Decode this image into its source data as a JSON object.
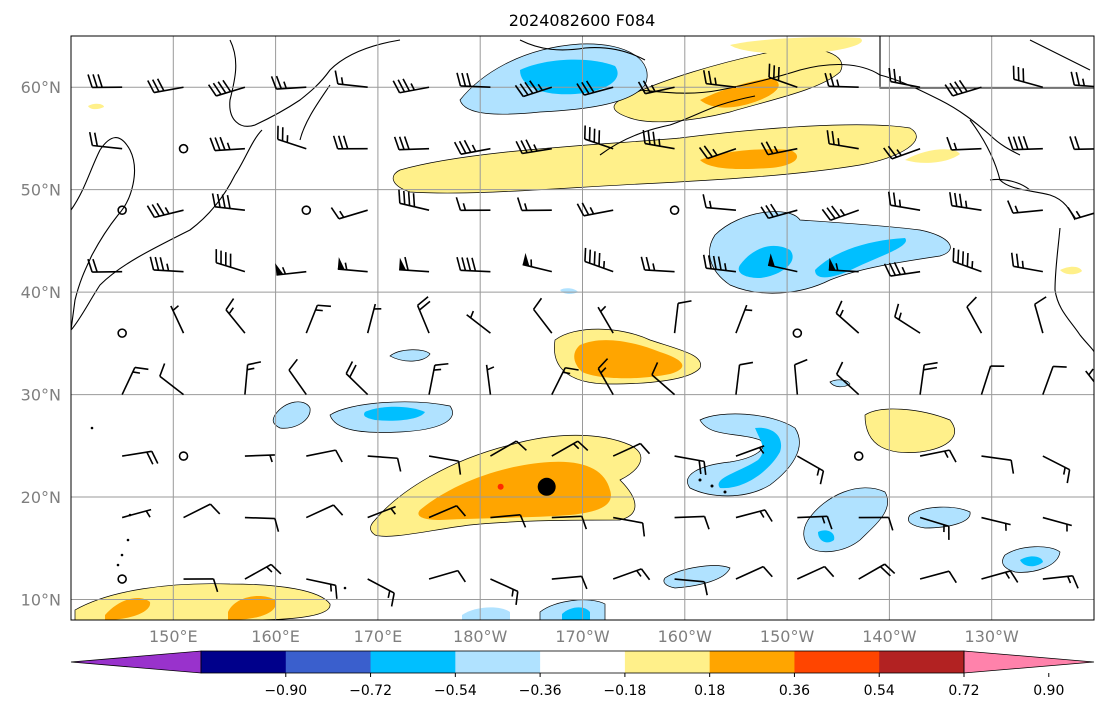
{
  "title": "2024082600 F084",
  "map": {
    "lon_range": [
      140,
      240
    ],
    "lat_range": [
      8,
      65
    ],
    "lat_ticks": [
      {
        "value": 10,
        "label": "10°N"
      },
      {
        "value": 20,
        "label": "20°N"
      },
      {
        "value": 30,
        "label": "30°N"
      },
      {
        "value": 40,
        "label": "40°N"
      },
      {
        "value": 50,
        "label": "50°N"
      },
      {
        "value": 60,
        "label": "60°N"
      }
    ],
    "lon_ticks": [
      {
        "value": 150,
        "label": "150°E"
      },
      {
        "value": 160,
        "label": "160°E"
      },
      {
        "value": 170,
        "label": "170°E"
      },
      {
        "value": 180,
        "label": "180°W"
      },
      {
        "value": 190,
        "label": "170°W"
      },
      {
        "value": 200,
        "label": "160°W"
      },
      {
        "value": 210,
        "label": "150°W"
      },
      {
        "value": 220,
        "label": "140°W"
      },
      {
        "value": 230,
        "label": "130°W"
      }
    ],
    "marker": {
      "name": "storm-center",
      "lon": 186.5,
      "lat": 21,
      "color": "#000000"
    },
    "small_marker": {
      "lon": 182,
      "lat": 21,
      "color": "#ff2a00"
    }
  },
  "colorbar": {
    "colors": [
      "#9932cc",
      "#00008b",
      "#3a5fcd",
      "#00bfff",
      "#b0e2ff",
      "#ffffff",
      "#fff08a",
      "#ffa500",
      "#ff4500",
      "#b22222",
      "#ff82ab"
    ],
    "ticks": [
      "−0.90",
      "−0.72",
      "−0.54",
      "−0.36",
      "−0.18",
      "0.18",
      "0.36",
      "0.54",
      "0.72",
      "0.90"
    ]
  }
}
